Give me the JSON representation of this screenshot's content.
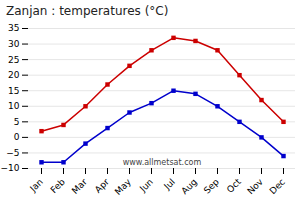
{
  "chart_data": {
    "type": "line",
    "title": "Zanjan : temperatures (°C)",
    "categories": [
      "Jan",
      "Feb",
      "Mar",
      "Apr",
      "May",
      "Jun",
      "Jul",
      "Aug",
      "Sep",
      "Oct",
      "Nov",
      "Dec"
    ],
    "series": [
      {
        "color": "#cc0000",
        "marker": "square",
        "values": [
          2,
          4,
          10,
          17,
          23,
          28,
          32,
          31,
          28,
          20,
          12,
          5
        ]
      },
      {
        "color": "#0000cc",
        "marker": "square",
        "values": [
          -8,
          -8,
          -2,
          3,
          8,
          11,
          15,
          14,
          10,
          5,
          0,
          -6
        ]
      }
    ],
    "ylim": [
      -10,
      35
    ],
    "yticks": [
      -10,
      -5,
      0,
      5,
      10,
      15,
      20,
      25,
      30,
      35
    ],
    "grid": true,
    "annotations": [
      "www.allmetsat.com"
    ]
  }
}
